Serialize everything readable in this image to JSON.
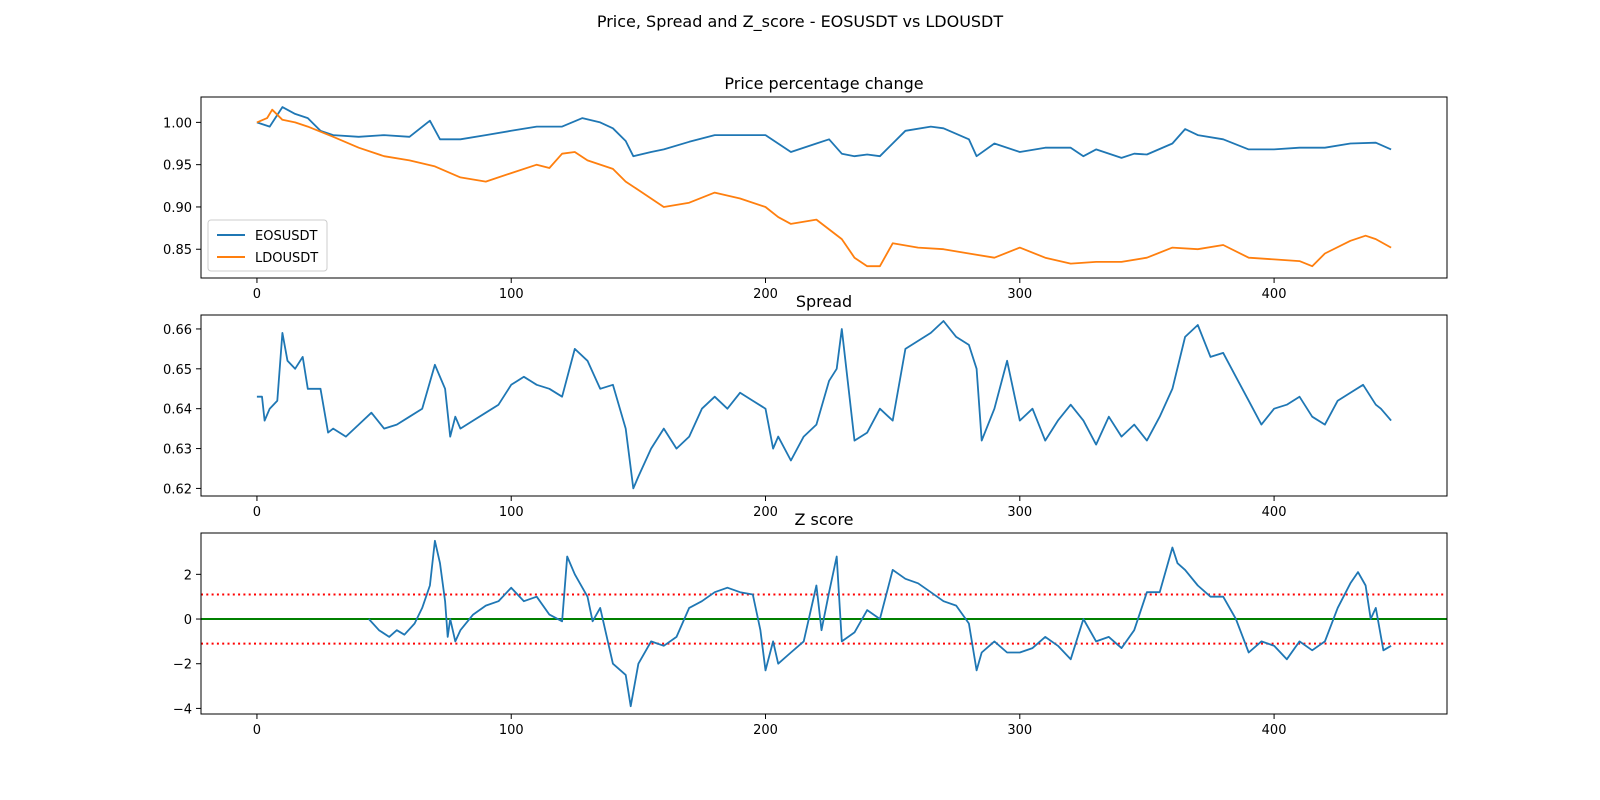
{
  "figure_title": "Price, Spread and Z_score - EOSUSDT vs LDOUSDT",
  "colors": {
    "eos": "#1f77b4",
    "ldo": "#ff7f0e",
    "zero_line": "#008000",
    "threshold_line": "#ff0000"
  },
  "chart_data": [
    {
      "type": "line",
      "title": "Price percentage change",
      "xlabel": "",
      "ylabel": "",
      "xlim": [
        -22,
        468
      ],
      "ylim": [
        0.816,
        1.03
      ],
      "xticks": [
        0,
        100,
        200,
        300,
        400
      ],
      "yticks": [
        0.85,
        0.9,
        0.95,
        1.0
      ],
      "ytick_labels": [
        "0.85",
        "0.90",
        "0.95",
        "1.00"
      ],
      "legend": {
        "position": "lower-left",
        "entries": [
          "EOSUSDT",
          "LDOUSDT"
        ]
      },
      "series": [
        {
          "name": "EOSUSDT",
          "color": "#1f77b4",
          "x": [
            0,
            5,
            10,
            15,
            20,
            25,
            30,
            40,
            50,
            60,
            68,
            72,
            80,
            90,
            100,
            110,
            120,
            128,
            135,
            140,
            145,
            148,
            155,
            160,
            170,
            180,
            190,
            200,
            210,
            220,
            225,
            230,
            235,
            240,
            245,
            255,
            265,
            270,
            280,
            283,
            290,
            300,
            310,
            320,
            325,
            330,
            340,
            345,
            350,
            360,
            365,
            370,
            380,
            390,
            400,
            410,
            420,
            430,
            440,
            446
          ],
          "y": [
            1.0,
            0.995,
            1.018,
            1.01,
            1.005,
            0.99,
            0.985,
            0.983,
            0.985,
            0.983,
            1.002,
            0.98,
            0.98,
            0.985,
            0.99,
            0.995,
            0.995,
            1.005,
            1.0,
            0.993,
            0.978,
            0.96,
            0.965,
            0.968,
            0.977,
            0.985,
            0.985,
            0.985,
            0.965,
            0.975,
            0.98,
            0.963,
            0.96,
            0.962,
            0.96,
            0.99,
            0.995,
            0.993,
            0.98,
            0.96,
            0.975,
            0.965,
            0.97,
            0.97,
            0.96,
            0.968,
            0.958,
            0.963,
            0.962,
            0.975,
            0.992,
            0.985,
            0.98,
            0.968,
            0.968,
            0.97,
            0.97,
            0.975,
            0.976,
            0.968
          ]
        },
        {
          "name": "LDOUSDT",
          "color": "#ff7f0e",
          "x": [
            0,
            4,
            6,
            10,
            15,
            20,
            30,
            40,
            50,
            60,
            70,
            80,
            90,
            100,
            110,
            115,
            120,
            125,
            130,
            140,
            145,
            150,
            160,
            170,
            180,
            190,
            200,
            205,
            210,
            220,
            230,
            235,
            240,
            245,
            250,
            260,
            270,
            280,
            290,
            300,
            310,
            320,
            330,
            340,
            350,
            360,
            370,
            380,
            390,
            400,
            410,
            415,
            420,
            430,
            436,
            440,
            446
          ],
          "y": [
            1.0,
            1.005,
            1.015,
            1.003,
            1.0,
            0.995,
            0.983,
            0.97,
            0.96,
            0.955,
            0.948,
            0.935,
            0.93,
            0.94,
            0.95,
            0.946,
            0.963,
            0.965,
            0.955,
            0.945,
            0.93,
            0.92,
            0.9,
            0.905,
            0.917,
            0.91,
            0.9,
            0.888,
            0.88,
            0.885,
            0.862,
            0.84,
            0.83,
            0.83,
            0.857,
            0.852,
            0.85,
            0.845,
            0.84,
            0.852,
            0.84,
            0.833,
            0.835,
            0.835,
            0.84,
            0.852,
            0.85,
            0.855,
            0.84,
            0.838,
            0.836,
            0.83,
            0.845,
            0.86,
            0.866,
            0.862,
            0.852
          ]
        }
      ]
    },
    {
      "type": "line",
      "title": "Spread",
      "xlabel": "",
      "ylabel": "",
      "xlim": [
        -22,
        468
      ],
      "ylim": [
        0.6181,
        0.6635
      ],
      "xticks": [
        0,
        100,
        200,
        300,
        400
      ],
      "yticks": [
        0.62,
        0.63,
        0.64,
        0.65,
        0.66
      ],
      "ytick_labels": [
        "0.62",
        "0.63",
        "0.64",
        "0.65",
        "0.66"
      ],
      "series": [
        {
          "name": "",
          "color": "#1f77b4",
          "x": [
            0,
            2,
            3,
            5,
            8,
            10,
            12,
            15,
            18,
            20,
            25,
            28,
            30,
            35,
            40,
            45,
            50,
            55,
            60,
            65,
            70,
            74,
            76,
            78,
            80,
            85,
            90,
            95,
            100,
            105,
            110,
            115,
            120,
            125,
            130,
            135,
            140,
            145,
            148,
            150,
            155,
            160,
            165,
            170,
            175,
            180,
            185,
            190,
            195,
            200,
            203,
            205,
            210,
            215,
            220,
            225,
            228,
            230,
            235,
            240,
            245,
            250,
            255,
            260,
            265,
            270,
            275,
            280,
            283,
            285,
            290,
            295,
            300,
            305,
            310,
            315,
            320,
            325,
            330,
            335,
            340,
            345,
            350,
            355,
            360,
            365,
            370,
            375,
            380,
            385,
            390,
            395,
            400,
            405,
            410,
            415,
            420,
            425,
            430,
            435,
            440,
            442,
            446
          ],
          "y": [
            0.643,
            0.643,
            0.637,
            0.64,
            0.642,
            0.659,
            0.652,
            0.65,
            0.653,
            0.645,
            0.645,
            0.634,
            0.635,
            0.633,
            0.636,
            0.639,
            0.635,
            0.636,
            0.638,
            0.64,
            0.651,
            0.645,
            0.633,
            0.638,
            0.635,
            0.637,
            0.639,
            0.641,
            0.646,
            0.648,
            0.646,
            0.645,
            0.643,
            0.655,
            0.652,
            0.645,
            0.646,
            0.635,
            0.62,
            0.623,
            0.63,
            0.635,
            0.63,
            0.633,
            0.64,
            0.643,
            0.64,
            0.644,
            0.642,
            0.64,
            0.63,
            0.633,
            0.627,
            0.633,
            0.636,
            0.647,
            0.65,
            0.66,
            0.632,
            0.634,
            0.64,
            0.637,
            0.655,
            0.657,
            0.659,
            0.662,
            0.658,
            0.656,
            0.65,
            0.632,
            0.64,
            0.652,
            0.637,
            0.64,
            0.632,
            0.637,
            0.641,
            0.637,
            0.631,
            0.638,
            0.633,
            0.636,
            0.632,
            0.638,
            0.645,
            0.658,
            0.661,
            0.653,
            0.654,
            0.648,
            0.642,
            0.636,
            0.64,
            0.641,
            0.643,
            0.638,
            0.636,
            0.642,
            0.644,
            0.646,
            0.641,
            0.64,
            0.637
          ]
        }
      ]
    },
    {
      "type": "line",
      "title": "Z score",
      "xlabel": "",
      "ylabel": "",
      "xlim": [
        -22,
        468
      ],
      "ylim": [
        -4.25,
        3.85
      ],
      "xticks": [
        0,
        100,
        200,
        300,
        400
      ],
      "yticks": [
        -4,
        -2,
        0,
        2
      ],
      "ytick_labels": [
        "−4",
        "−2",
        "0",
        "2"
      ],
      "hlines": [
        {
          "y": 0,
          "color": "#008000",
          "style": "solid"
        },
        {
          "y": 1.1,
          "color": "#ff0000",
          "style": "dotted"
        },
        {
          "y": -1.1,
          "color": "#ff0000",
          "style": "dotted"
        }
      ],
      "series": [
        {
          "name": "",
          "color": "#1f77b4",
          "x": [
            44,
            48,
            52,
            55,
            58,
            62,
            65,
            68,
            70,
            72,
            74,
            75,
            76,
            78,
            80,
            85,
            90,
            95,
            100,
            105,
            110,
            115,
            120,
            122,
            125,
            130,
            132,
            135,
            140,
            145,
            147,
            150,
            155,
            160,
            165,
            170,
            175,
            180,
            185,
            190,
            195,
            198,
            200,
            203,
            205,
            210,
            215,
            220,
            222,
            225,
            228,
            230,
            235,
            240,
            245,
            250,
            255,
            260,
            265,
            270,
            275,
            280,
            283,
            285,
            290,
            295,
            300,
            305,
            310,
            315,
            320,
            325,
            330,
            335,
            340,
            345,
            350,
            355,
            360,
            362,
            365,
            370,
            375,
            380,
            385,
            390,
            395,
            400,
            405,
            410,
            415,
            420,
            425,
            430,
            433,
            436,
            438,
            440,
            443,
            446
          ],
          "y": [
            0.0,
            -0.5,
            -0.8,
            -0.5,
            -0.7,
            -0.2,
            0.5,
            1.5,
            3.5,
            2.5,
            0.8,
            -0.8,
            0.0,
            -1.0,
            -0.5,
            0.2,
            0.6,
            0.8,
            1.4,
            0.8,
            1.0,
            0.2,
            -0.1,
            2.8,
            2.0,
            1.0,
            -0.1,
            0.5,
            -2.0,
            -2.5,
            -3.9,
            -2.0,
            -1.0,
            -1.2,
            -0.8,
            0.5,
            0.8,
            1.2,
            1.4,
            1.2,
            1.1,
            -0.5,
            -2.3,
            -1.0,
            -2.0,
            -1.5,
            -1.0,
            1.5,
            -0.5,
            1.2,
            2.8,
            -1.0,
            -0.6,
            0.4,
            0.0,
            2.2,
            1.8,
            1.6,
            1.2,
            0.8,
            0.6,
            -0.2,
            -2.3,
            -1.5,
            -1.0,
            -1.5,
            -1.5,
            -1.3,
            -0.8,
            -1.2,
            -1.8,
            0.0,
            -1.0,
            -0.8,
            -1.3,
            -0.5,
            1.2,
            1.2,
            3.2,
            2.5,
            2.2,
            1.5,
            1.0,
            1.0,
            0.0,
            -1.5,
            -1.0,
            -1.2,
            -1.8,
            -1.0,
            -1.4,
            -1.0,
            0.5,
            1.6,
            2.1,
            1.5,
            0.0,
            0.5,
            -1.4,
            -1.2
          ]
        }
      ]
    }
  ]
}
